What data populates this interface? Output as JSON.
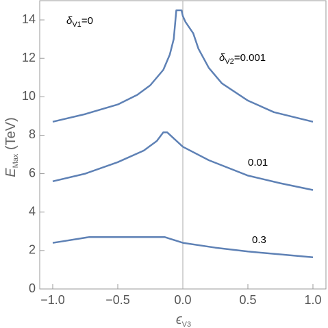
{
  "chart_data": {
    "type": "line",
    "xlabel": {
      "main": "ϵ",
      "sub": "V3"
    },
    "ylabel": {
      "main": "E",
      "sub": "Max",
      "rest": " (TeV)"
    },
    "annotations": [
      {
        "main": "δ",
        "sub": "V1",
        "rest": "=0"
      },
      {
        "main": "δ",
        "sub": "V2",
        "rest": "=0.001"
      },
      {
        "main": "0.01"
      },
      {
        "main": "0.3"
      }
    ],
    "xlim": [
      -1.1,
      1.1
    ],
    "ylim": [
      0,
      15
    ],
    "xticks": [
      {
        "value": -1,
        "label": "−1.0"
      },
      {
        "value": -0.5,
        "label": "−0.5"
      },
      {
        "value": 0,
        "label": "0.0"
      },
      0.5,
      {
        "value": 1,
        "label": "1.0"
      }
    ],
    "yticks": [
      0,
      2,
      4,
      6,
      8,
      10,
      12,
      14
    ],
    "vline": 0,
    "series": [
      {
        "color": "#5e81b5",
        "x": [
          -1,
          -0.75,
          -0.5,
          -0.35,
          -0.25,
          -0.15,
          -0.1,
          -0.07,
          -0.05,
          -0.01,
          0,
          0.02,
          0.05,
          0.08,
          0.12,
          0.2,
          0.3,
          0.5,
          0.7,
          1
        ],
        "values": [
          8.7,
          9.1,
          9.6,
          10.1,
          10.6,
          11.4,
          12.2,
          13.0,
          14.5,
          14.5,
          14.2,
          13.9,
          13.6,
          13.3,
          12.5,
          11.5,
          10.7,
          9.8,
          9.2,
          8.7
        ]
      },
      {
        "color": "#5e81b5",
        "x": [
          -1,
          -0.75,
          -0.5,
          -0.3,
          -0.2,
          -0.15,
          -0.12,
          0,
          0.2,
          0.5,
          0.75,
          1
        ],
        "values": [
          5.6,
          6.0,
          6.6,
          7.2,
          7.7,
          8.15,
          8.15,
          7.4,
          6.7,
          5.9,
          5.5,
          5.15
        ]
      },
      {
        "color": "#5e81b5",
        "x": [
          -1,
          -0.95,
          -0.72,
          -0.14,
          0,
          0.25,
          0.5,
          0.75,
          1
        ],
        "values": [
          2.4,
          2.45,
          2.7,
          2.7,
          2.4,
          2.15,
          1.95,
          1.8,
          1.65
        ]
      }
    ]
  }
}
